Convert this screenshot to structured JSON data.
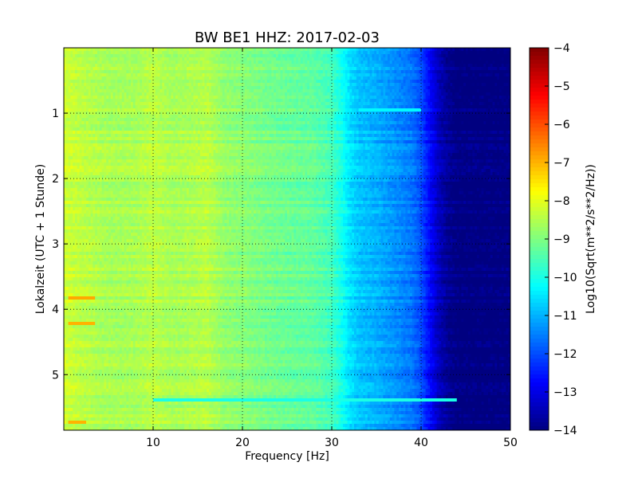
{
  "chart_data": {
    "type": "heatmap",
    "title": "BW BE1 HHZ: 2017-02-03",
    "xlabel": "Frequency [Hz]",
    "ylabel": "Lokalzeit (UTC + 1 Stunde)",
    "xlim": [
      0,
      50
    ],
    "ylim": [
      5.85,
      0
    ],
    "x_ticks": [
      10,
      20,
      30,
      40,
      50
    ],
    "x_tick_labels": [
      "10",
      "20",
      "30",
      "40",
      "50"
    ],
    "y_ticks": [
      1,
      2,
      3,
      4,
      5
    ],
    "y_tick_labels": [
      "1",
      "2",
      "3",
      "4",
      "5"
    ],
    "grid": true,
    "colormap": "jet",
    "colorbar": {
      "label": "Log10(Sqrt(m**2/s**2/Hz))",
      "range": [
        -14,
        -4
      ],
      "ticks": [
        -4,
        -5,
        -6,
        -7,
        -8,
        -9,
        -10,
        -11,
        -12,
        -13,
        -14
      ],
      "tick_labels": [
        "−4",
        "−5",
        "−6",
        "−7",
        "−8",
        "−9",
        "−10",
        "−11",
        "−12",
        "−13",
        "−14"
      ]
    },
    "frequency_profile": {
      "frequencies": [
        0,
        2,
        5,
        8,
        10,
        12,
        15,
        16,
        18,
        20,
        23,
        25,
        28,
        30,
        31,
        32,
        33,
        35,
        37,
        39,
        40,
        41,
        42,
        43,
        44,
        45,
        50
      ],
      "values": [
        -8.2,
        -8.4,
        -8.6,
        -8.6,
        -8.4,
        -8.6,
        -8.5,
        -8.4,
        -8.8,
        -8.9,
        -9.1,
        -9.2,
        -9.3,
        -9.6,
        -10.0,
        -10.5,
        -10.8,
        -11.0,
        -11.3,
        -11.6,
        -12.0,
        -12.7,
        -13.4,
        -13.8,
        -14.0,
        -14.0,
        -14.0
      ]
    },
    "features": [
      {
        "time": 0.95,
        "freq_range": [
          33,
          40
        ],
        "value": -10.3
      },
      {
        "time": 3.82,
        "freq_range": [
          0.5,
          3.5
        ],
        "value": -6.9
      },
      {
        "time": 4.22,
        "freq_range": [
          0.5,
          3.5
        ],
        "value": -7.0
      },
      {
        "time": 5.39,
        "freq_range": [
          10,
          44
        ],
        "value": -10.0
      },
      {
        "time": 5.72,
        "freq_range": [
          0.5,
          2.5
        ],
        "value": -7.0
      }
    ]
  }
}
